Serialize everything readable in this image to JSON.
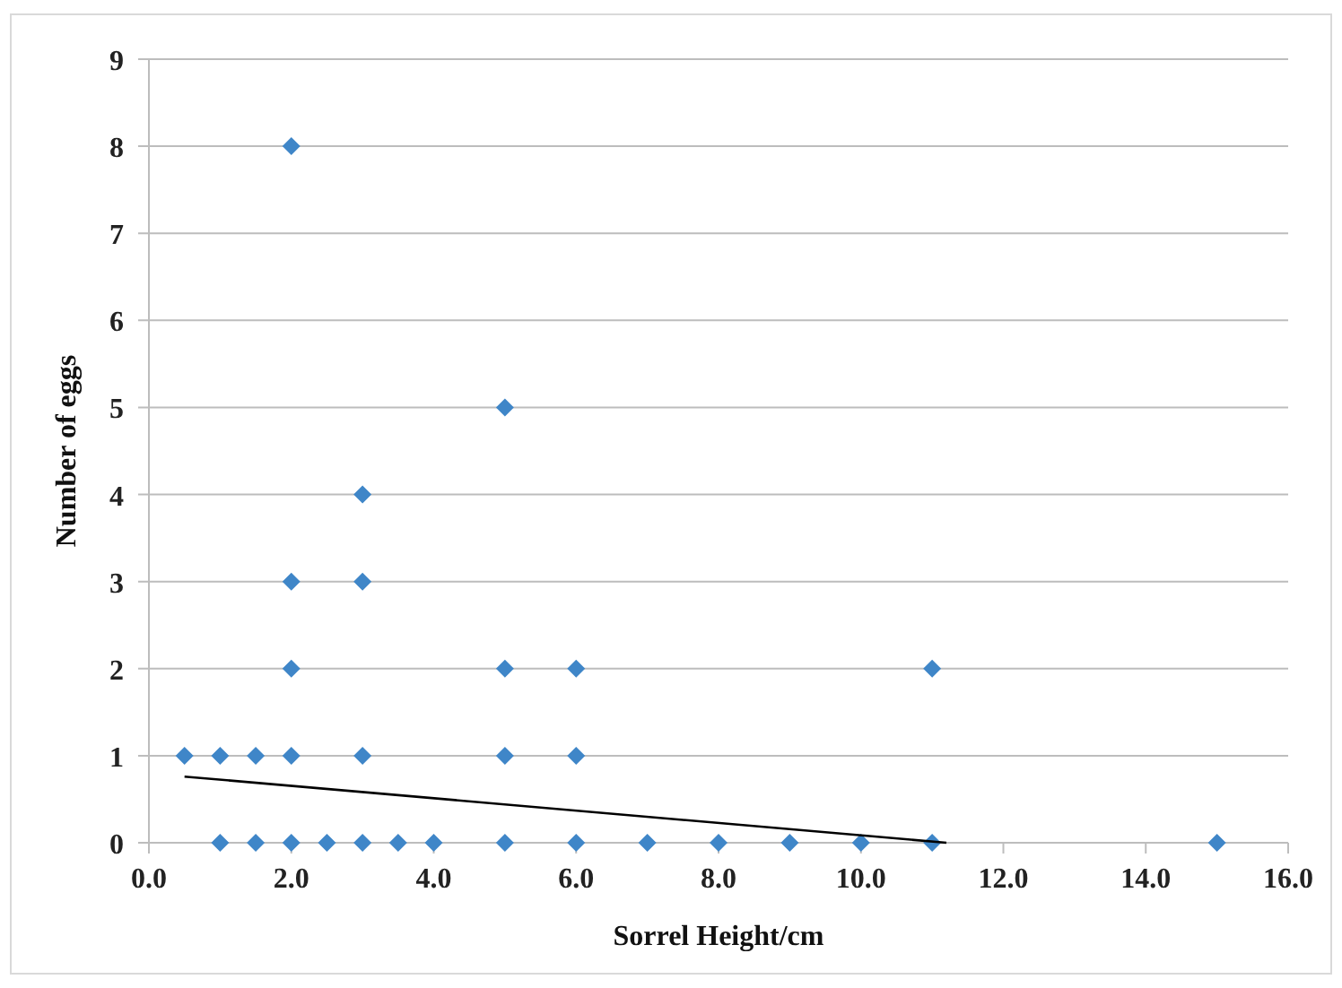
{
  "chart_data": {
    "type": "scatter",
    "xlabel": "Sorrel Height/cm",
    "ylabel": "Number of eggs",
    "xlim": [
      0,
      16
    ],
    "ylim": [
      0,
      9
    ],
    "xticks": [
      {
        "value": 0,
        "label": "0.0"
      },
      {
        "value": 2,
        "label": "2.0"
      },
      {
        "value": 4,
        "label": "4.0"
      },
      {
        "value": 6,
        "label": "6.0"
      },
      {
        "value": 8,
        "label": "8.0"
      },
      {
        "value": 10,
        "label": "10.0"
      },
      {
        "value": 12,
        "label": "12.0"
      },
      {
        "value": 14,
        "label": "14.0"
      },
      {
        "value": 16,
        "label": "16.0"
      }
    ],
    "yticks": [
      0,
      1,
      2,
      3,
      4,
      5,
      6,
      7,
      8,
      9
    ],
    "grid": "y",
    "series": [
      {
        "color": "#3f86c8",
        "marker": "diamond",
        "x": [
          1,
          1.5,
          2,
          2.5,
          3,
          3.5,
          4,
          5,
          6,
          7,
          8,
          9,
          10,
          11,
          15,
          0.5,
          1,
          1.5,
          2,
          3,
          5,
          6,
          2,
          5,
          6,
          11,
          2,
          3,
          3,
          5,
          2
        ],
        "values": [
          0,
          0,
          0,
          0,
          0,
          0,
          0,
          0,
          0,
          0,
          0,
          0,
          0,
          0,
          0,
          1,
          1,
          1,
          1,
          1,
          1,
          1,
          2,
          2,
          2,
          2,
          3,
          3,
          4,
          5,
          8
        ]
      },
      {
        "type": "line",
        "color": "#000000",
        "line_style": "solid",
        "x": [
          0.5,
          11.2
        ],
        "values": [
          0.76,
          0
        ]
      }
    ]
  }
}
